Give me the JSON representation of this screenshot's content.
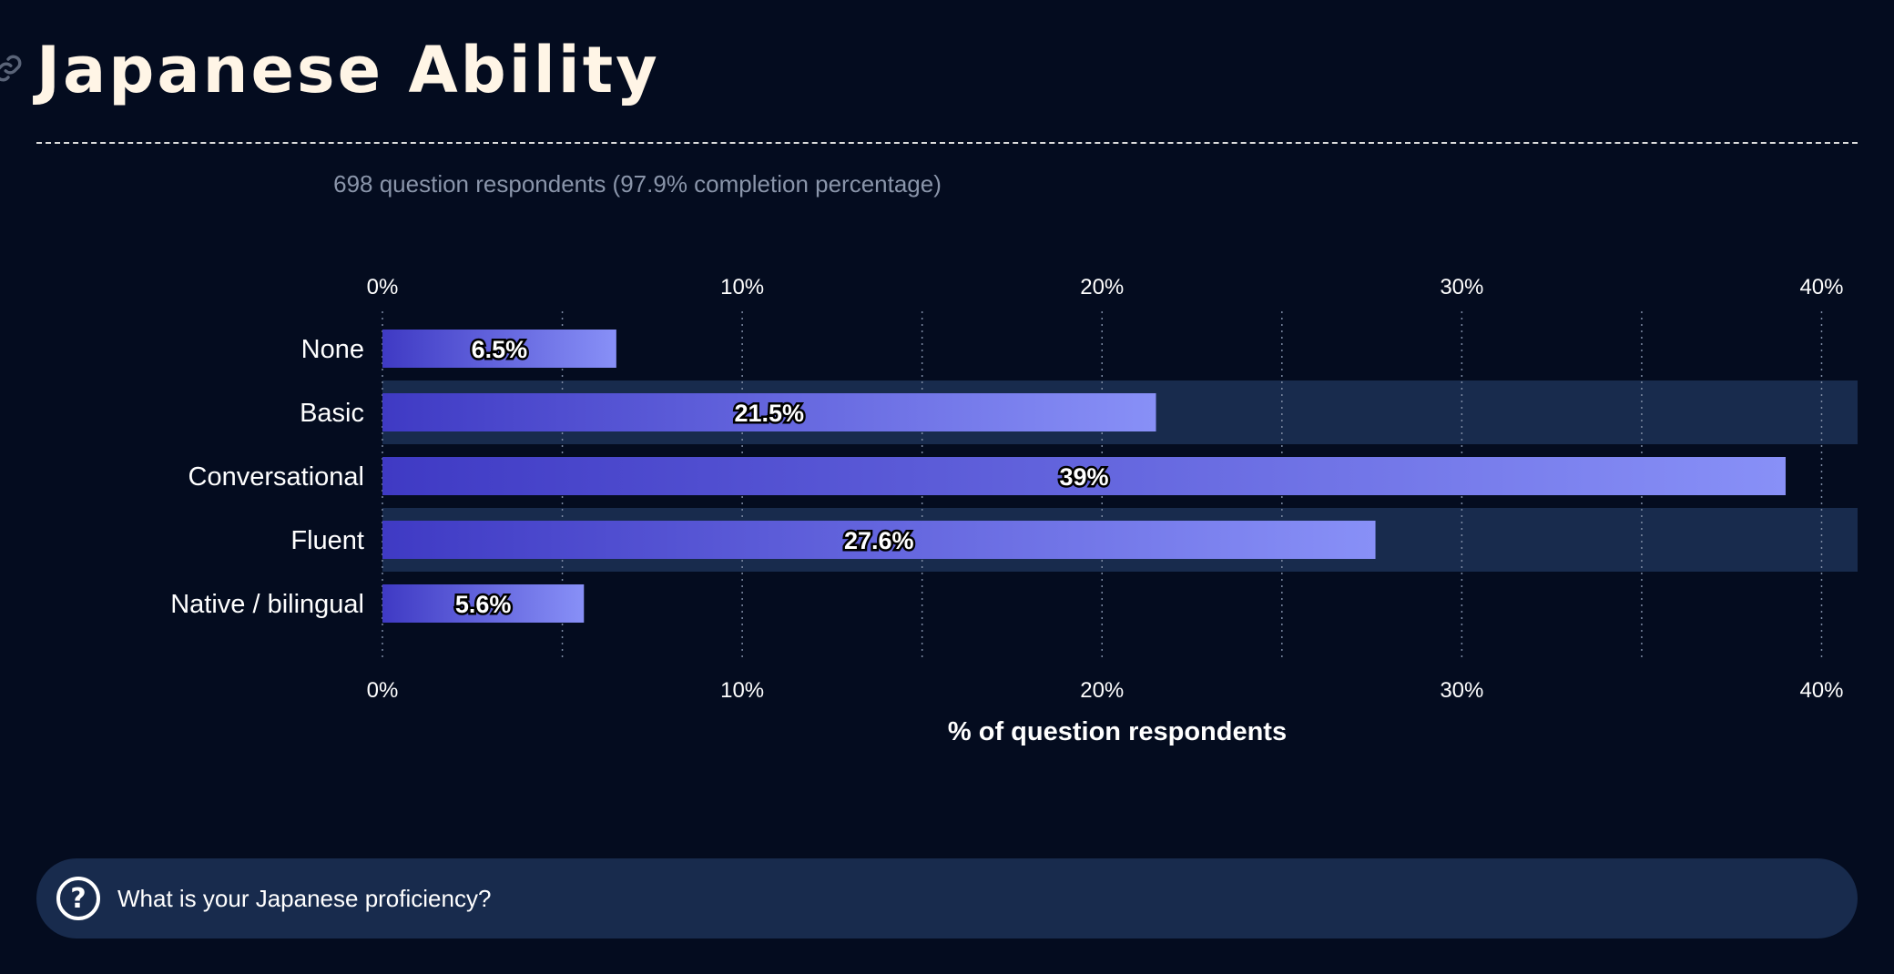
{
  "page": {
    "title": "Japanese Ability",
    "subtitle": "698 question respondents (97.9% completion percentage)",
    "question": "What is your Japanese proficiency?",
    "icons": {
      "anchor": "link-icon",
      "question": "question-circle-icon"
    }
  },
  "colors": {
    "background": "#040c1f",
    "band": "#182b4d",
    "bar_start": "#3f3ac4",
    "bar_end": "#8890f7",
    "title": "#fff5e6",
    "grid": "#7d8aa3"
  },
  "chart_data": {
    "type": "bar",
    "orientation": "horizontal",
    "categories": [
      "None",
      "Basic",
      "Conversational",
      "Fluent",
      "Native / bilingual"
    ],
    "values": [
      6.5,
      21.5,
      39,
      27.6,
      5.6
    ],
    "value_labels": [
      "6.5%",
      "21.5%",
      "39%",
      "27.6%",
      "5.6%"
    ],
    "xlabel": "% of question respondents",
    "xlim": [
      0,
      41
    ],
    "xticks": [
      0,
      10,
      20,
      30,
      40
    ],
    "xtick_labels": [
      "0%",
      "10%",
      "20%",
      "30%",
      "40%"
    ],
    "minor_grid": [
      5,
      15,
      25,
      35
    ],
    "grid": true,
    "tick_labels_top_and_bottom": true
  }
}
